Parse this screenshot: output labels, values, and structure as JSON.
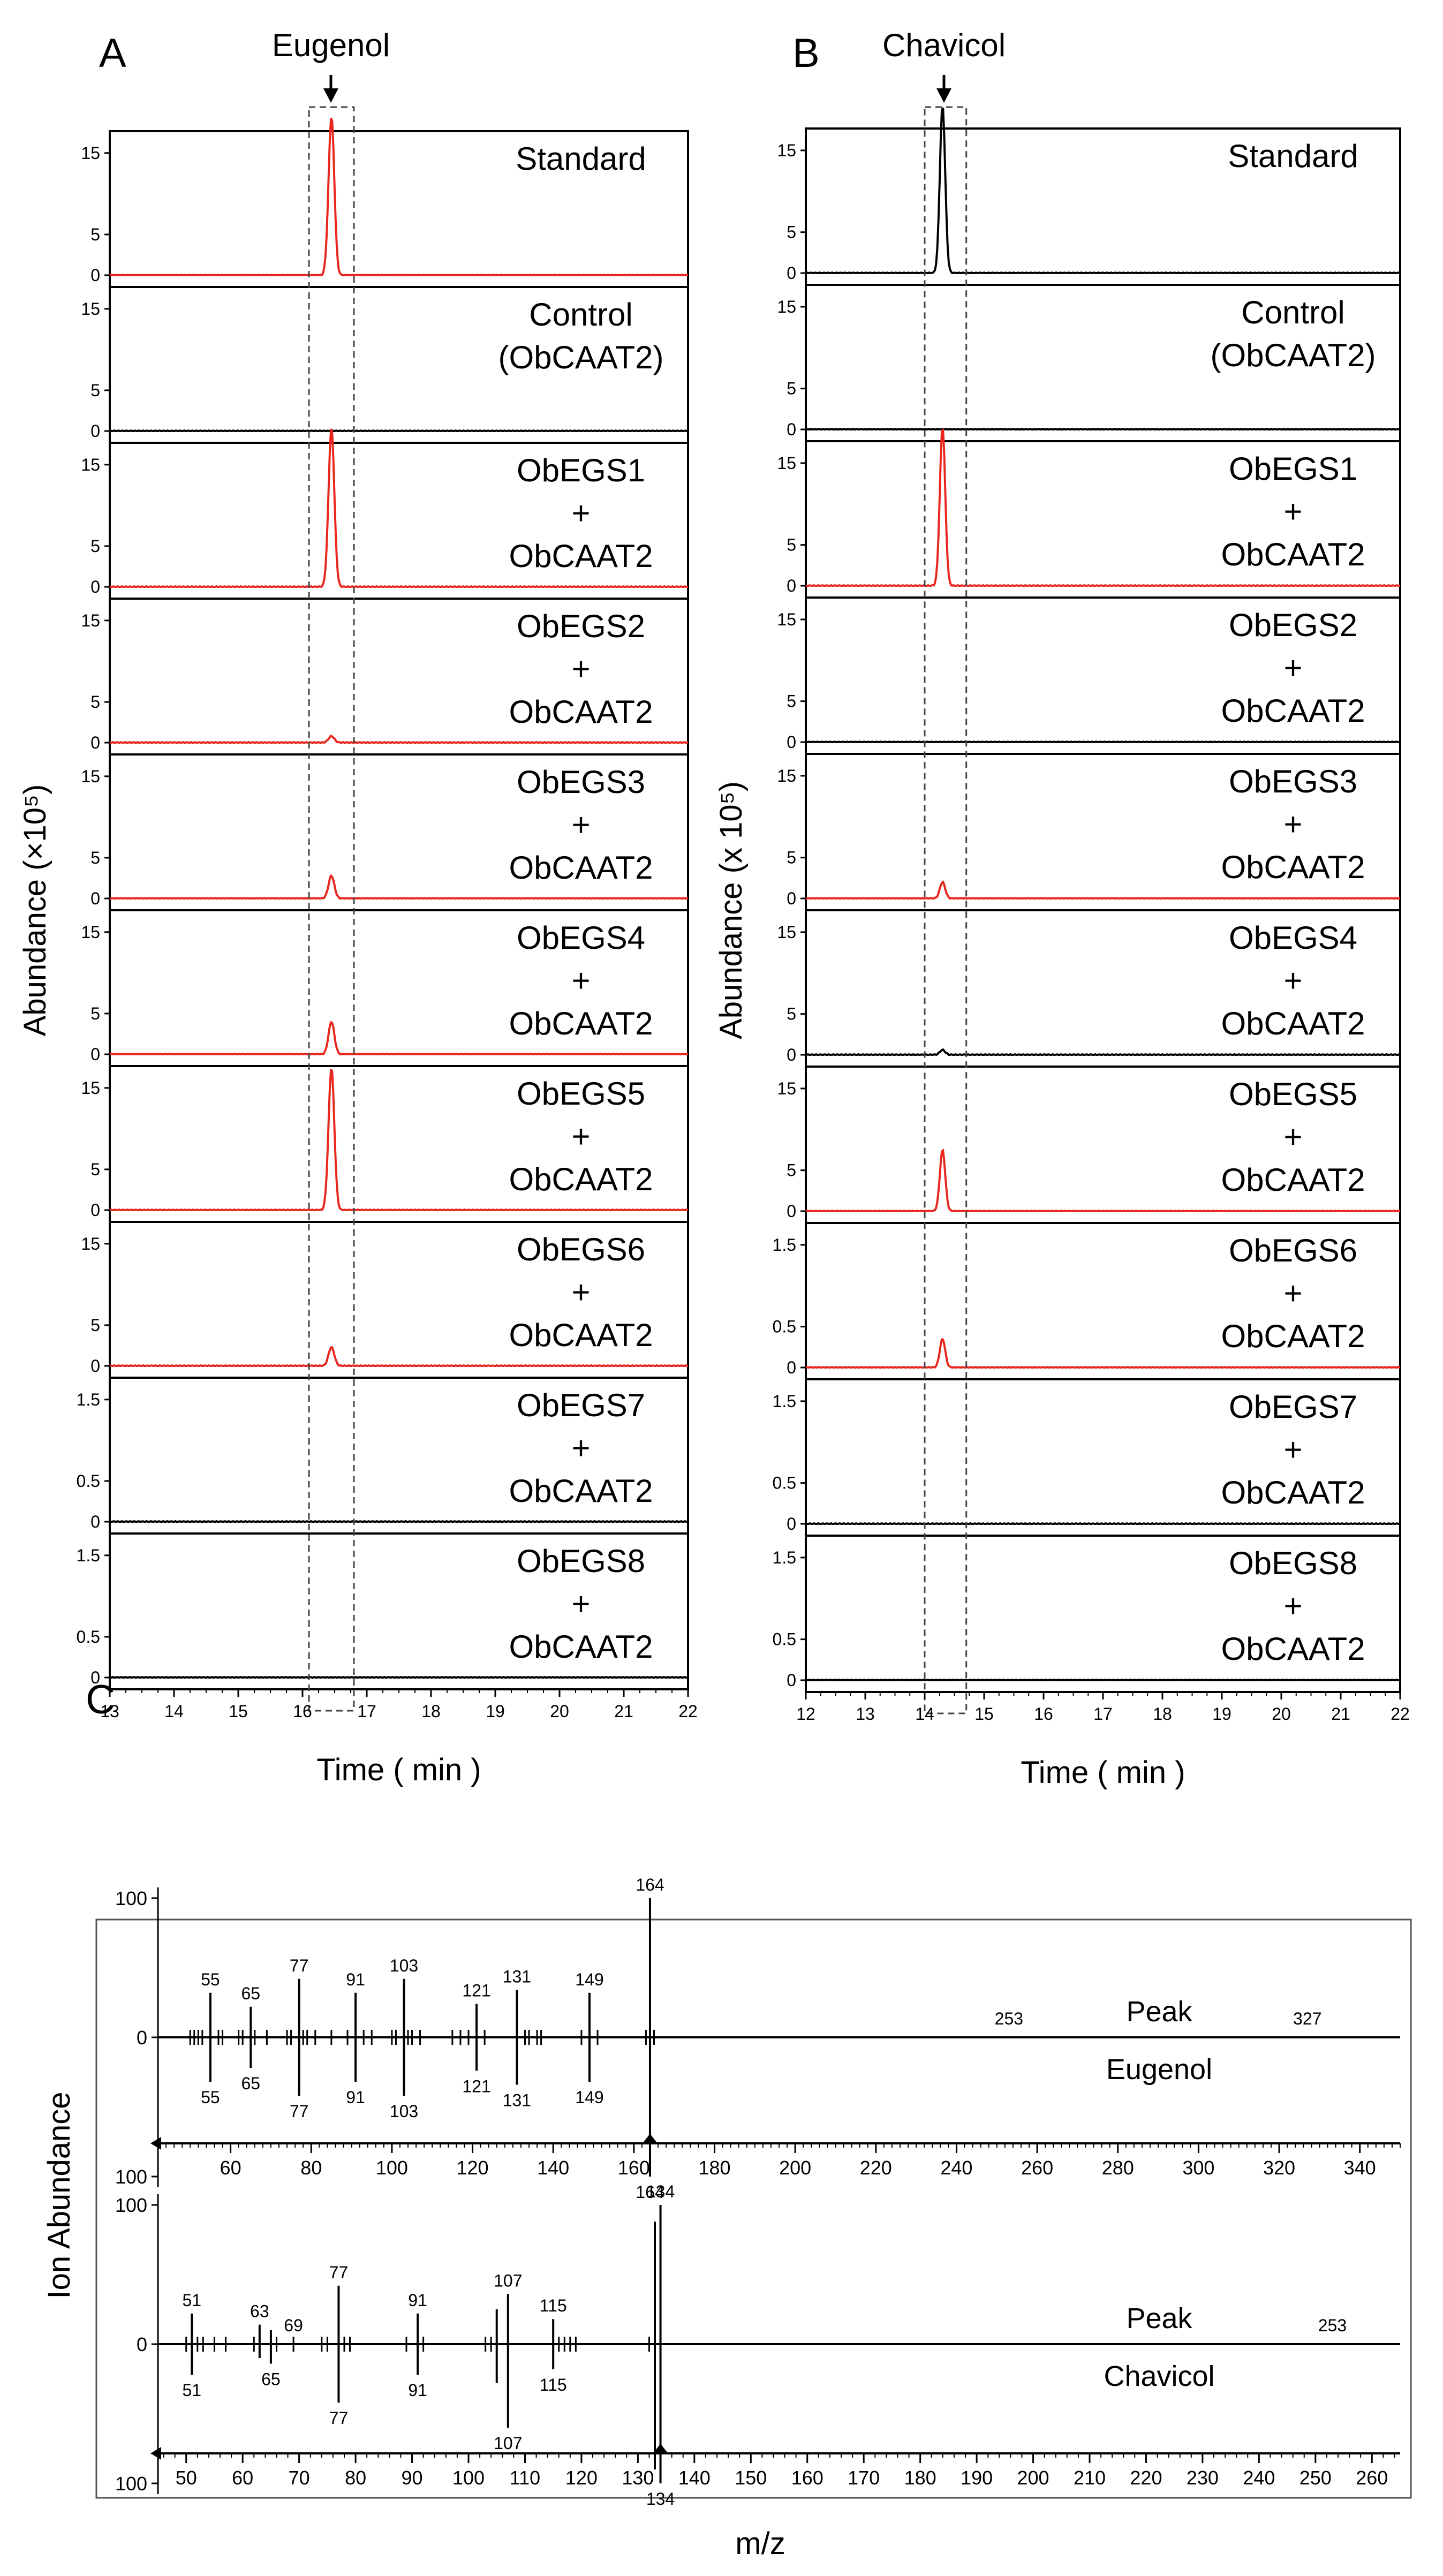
{
  "panel_letters": [
    "A",
    "B",
    "C"
  ],
  "panelA": {
    "compound_label": "Eugenol",
    "ylabel": "Abundance (×10⁵)",
    "xlabel": "Time ( min )",
    "xlim": [
      13,
      22
    ],
    "x_ticks": [
      "13",
      "14",
      "15",
      "16",
      "17",
      "18",
      "19",
      "20",
      "21",
      "22"
    ],
    "peak_time": 16.45,
    "highlight_window": [
      16.1,
      16.8
    ],
    "traces": [
      {
        "lines": [
          "Standard"
        ],
        "color": "#e8281f",
        "yticks": [
          "0",
          "5",
          "15"
        ],
        "peak": 19.5
      },
      {
        "lines": [
          "Control",
          "(ObCAAT2)"
        ],
        "color": "#000000",
        "yticks": [
          "0",
          "5",
          "15"
        ],
        "peak": 0
      },
      {
        "lines": [
          "ObEGS1",
          "+",
          "ObCAAT2"
        ],
        "color": "#e8281f",
        "yticks": [
          "0",
          "5",
          "15"
        ],
        "peak": 19.5
      },
      {
        "lines": [
          "ObEGS2",
          "+",
          "ObCAAT2"
        ],
        "color": "#e8281f",
        "yticks": [
          "0",
          "5",
          "15"
        ],
        "peak": 0.8
      },
      {
        "lines": [
          "ObEGS3",
          "+",
          "ObCAAT2"
        ],
        "color": "#e8281f",
        "yticks": [
          "0",
          "5",
          "15"
        ],
        "peak": 2.8
      },
      {
        "lines": [
          "ObEGS4",
          "+",
          "ObCAAT2"
        ],
        "color": "#e8281f",
        "yticks": [
          "0",
          "5",
          "15"
        ],
        "peak": 4.0
      },
      {
        "lines": [
          "ObEGS5",
          "+",
          "ObCAAT2"
        ],
        "color": "#e8281f",
        "yticks": [
          "0",
          "5",
          "15"
        ],
        "peak": 17.5
      },
      {
        "lines": [
          "ObEGS6",
          "+",
          "ObCAAT2"
        ],
        "color": "#e8281f",
        "yticks": [
          "0",
          "5",
          "15"
        ],
        "peak": 2.3
      },
      {
        "lines": [
          "ObEGS7",
          "+",
          "ObCAAT2"
        ],
        "color": "#000000",
        "yticks": [
          "0",
          "0.5",
          "1.5"
        ],
        "peak": 0
      },
      {
        "lines": [
          "ObEGS8",
          "+",
          "ObCAAT2"
        ],
        "color": "#000000",
        "yticks": [
          "0",
          "0.5",
          "1.5"
        ],
        "peak": 0
      }
    ]
  },
  "panelB": {
    "compound_label": "Chavicol",
    "ylabel": "Abundance (x 10⁵)",
    "xlabel": "Time ( min )",
    "xlim": [
      12,
      22
    ],
    "x_ticks": [
      "12",
      "13",
      "14",
      "15",
      "16",
      "17",
      "18",
      "19",
      "20",
      "21",
      "22"
    ],
    "peak_time": 14.3,
    "highlight_window": [
      14.0,
      14.7
    ],
    "traces": [
      {
        "lines": [
          "Standard"
        ],
        "color": "#000000",
        "yticks": [
          "0",
          "5",
          "15"
        ],
        "peak": 20.5
      },
      {
        "lines": [
          "Control",
          "(ObCAAT2)"
        ],
        "color": "#000000",
        "yticks": [
          "0",
          "5",
          "15"
        ],
        "peak": 0
      },
      {
        "lines": [
          "ObEGS1",
          "+",
          "ObCAAT2"
        ],
        "color": "#e8281f",
        "yticks": [
          "0",
          "5",
          "15"
        ],
        "peak": 19.5
      },
      {
        "lines": [
          "ObEGS2",
          "+",
          "ObCAAT2"
        ],
        "color": "#000000",
        "yticks": [
          "0",
          "5",
          "15"
        ],
        "peak": 0
      },
      {
        "lines": [
          "ObEGS3",
          "+",
          "ObCAAT2"
        ],
        "color": "#e8281f",
        "yticks": [
          "0",
          "5",
          "15"
        ],
        "peak": 2.0
      },
      {
        "lines": [
          "ObEGS4",
          "+",
          "ObCAAT2"
        ],
        "color": "#000000",
        "yticks": [
          "0",
          "5",
          "15"
        ],
        "peak": 0.6
      },
      {
        "lines": [
          "ObEGS5",
          "+",
          "ObCAAT2"
        ],
        "color": "#e8281f",
        "yticks": [
          "0",
          "5",
          "15"
        ],
        "peak": 7.5
      },
      {
        "lines": [
          "ObEGS6",
          "+",
          "ObCAAT2"
        ],
        "color": "#e8281f",
        "yticks": [
          "0",
          "0.5",
          "1.5"
        ],
        "peak": 0.35
      },
      {
        "lines": [
          "ObEGS7",
          "+",
          "ObCAAT2"
        ],
        "color": "#000000",
        "yticks": [
          "0",
          "0.5",
          "1.5"
        ],
        "peak": 0
      },
      {
        "lines": [
          "ObEGS8",
          "+",
          "ObCAAT2"
        ],
        "color": "#000000",
        "yticks": [
          "0",
          "0.5",
          "1.5"
        ],
        "peak": 0
      }
    ]
  },
  "panelC": {
    "ylabel": "Ion Abundance",
    "xlabel": "m/z",
    "spectra": [
      {
        "upper_word": "Peak",
        "lower_word": "Eugenol",
        "yticks": [
          "100",
          "0",
          "100"
        ],
        "xlim": [
          42,
          350
        ],
        "x_ticks": [
          "60",
          "80",
          "100",
          "120",
          "140",
          "160",
          "180",
          "200",
          "220",
          "240",
          "260",
          "280",
          "300",
          "320",
          "340"
        ],
        "upper_labels": [
          "55",
          "65",
          "77",
          "91",
          "103",
          "121",
          "131",
          "149",
          "164",
          "253",
          "327"
        ],
        "lower_labels": [
          "55",
          "65",
          "77",
          "91",
          "103",
          "121",
          "131",
          "149",
          "164"
        ],
        "major_peaks": [
          {
            "mz": 55,
            "up": 32,
            "down": 32
          },
          {
            "mz": 65,
            "up": 22,
            "down": 22
          },
          {
            "mz": 77,
            "up": 42,
            "down": 42
          },
          {
            "mz": 91,
            "up": 32,
            "down": 32
          },
          {
            "mz": 103,
            "up": 42,
            "down": 42
          },
          {
            "mz": 121,
            "up": 24,
            "down": 24
          },
          {
            "mz": 131,
            "up": 34,
            "down": 34
          },
          {
            "mz": 149,
            "up": 32,
            "down": 32
          },
          {
            "mz": 164,
            "up": 100,
            "down": 100
          }
        ],
        "minor_peaks": [
          50,
          51,
          52,
          53,
          57,
          58,
          62,
          63,
          66,
          69,
          74,
          75,
          78,
          79,
          81,
          85,
          89,
          93,
          95,
          100,
          101,
          104,
          105,
          107,
          115,
          117,
          119,
          123,
          133,
          134,
          136,
          137,
          147,
          151,
          163,
          165
        ]
      },
      {
        "upper_word": "Peak",
        "lower_word": "Chavicol",
        "yticks": [
          "100",
          "0",
          "100"
        ],
        "xlim": [
          45,
          265
        ],
        "x_ticks": [
          "50",
          "60",
          "70",
          "80",
          "90",
          "100",
          "110",
          "120",
          "130",
          "140",
          "150",
          "160",
          "170",
          "180",
          "190",
          "200",
          "210",
          "220",
          "230",
          "240",
          "250",
          "260"
        ],
        "upper_labels": [
          "51",
          "63",
          "69",
          "77",
          "91",
          "107",
          "115",
          "134",
          "253"
        ],
        "lower_labels": [
          "51",
          "65",
          "77",
          "91",
          "107",
          "115",
          "134"
        ],
        "major_peaks": [
          {
            "mz": 51,
            "up": 22,
            "down": 22
          },
          {
            "mz": 63,
            "up": 14,
            "down": 10
          },
          {
            "mz": 65,
            "up": 10,
            "down": 14
          },
          {
            "mz": 77,
            "up": 42,
            "down": 42
          },
          {
            "mz": 91,
            "up": 22,
            "down": 22
          },
          {
            "mz": 105,
            "up": 25,
            "down": 28
          },
          {
            "mz": 107,
            "up": 36,
            "down": 60
          },
          {
            "mz": 115,
            "up": 18,
            "down": 18
          },
          {
            "mz": 133,
            "up": 88,
            "down": 90
          },
          {
            "mz": 134,
            "up": 100,
            "down": 100
          }
        ],
        "minor_peaks": [
          50,
          52,
          53,
          55,
          57,
          62,
          66,
          69,
          74,
          75,
          78,
          79,
          89,
          92,
          103,
          104,
          116,
          117,
          118,
          119,
          132
        ]
      }
    ]
  },
  "colors": {
    "red_trace": "#e8281f",
    "black_trace": "#000000",
    "box_dash": "#444444"
  },
  "icons": [
    "arrow-down-icon"
  ]
}
